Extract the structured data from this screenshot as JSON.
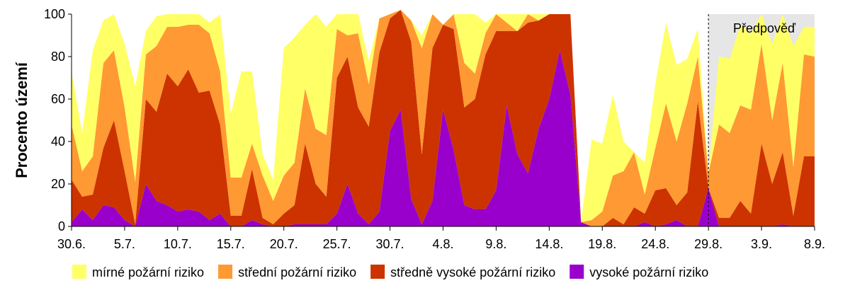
{
  "chart_data": {
    "type": "area",
    "stacked": true,
    "ylabel": "Procento území",
    "ylim": [
      0,
      100
    ],
    "yticks": [
      0,
      20,
      40,
      60,
      80,
      100
    ],
    "xlim": [
      0,
      70
    ],
    "x_tick_labels": [
      "30.6.",
      "5.7.",
      "10.7.",
      "15.7.",
      "20.7.",
      "25.7.",
      "30.7.",
      "4.8.",
      "9.8.",
      "14.8.",
      "19.8.",
      "24.8.",
      "29.8.",
      "3.9.",
      "8.9."
    ],
    "x_tick_positions": [
      0,
      5,
      10,
      15,
      20,
      25,
      30,
      35,
      40,
      45,
      50,
      55,
      60,
      65,
      70
    ],
    "grid": false,
    "legend_position": "bottom",
    "forecast_start": 60,
    "forecast_label": "Předpověď",
    "series": [
      {
        "name": "vysoké požární riziko",
        "color": "#9900cc",
        "values": [
          2,
          8,
          3,
          10,
          9,
          3,
          0,
          20,
          12,
          10,
          7,
          8,
          7,
          3,
          6,
          0,
          0,
          3,
          1,
          0,
          0,
          1,
          1,
          1,
          1,
          6,
          20,
          6,
          1,
          7,
          45,
          55,
          13,
          1,
          12,
          55,
          36,
          10,
          8,
          8,
          17,
          57,
          34,
          25,
          46,
          60,
          83,
          62,
          2,
          0,
          0,
          0,
          0,
          0,
          2,
          0,
          1,
          3,
          0,
          0,
          18,
          0,
          0,
          0,
          0,
          0,
          0,
          1,
          0,
          0,
          0
        ]
      },
      {
        "name": "středně vysoké požární riziko",
        "color": "#cc3300",
        "values": [
          20,
          6,
          12,
          27,
          41,
          23,
          1,
          40,
          42,
          62,
          59,
          66,
          56,
          61,
          42,
          5,
          5,
          24,
          3,
          1,
          6,
          9,
          38,
          19,
          13,
          64,
          60,
          50,
          46,
          75,
          53,
          47,
          74,
          33,
          72,
          40,
          57,
          46,
          52,
          73,
          75,
          35,
          58,
          71,
          51,
          40,
          17,
          38,
          0,
          0,
          0,
          4,
          1,
          9,
          4,
          17,
          17,
          7,
          16,
          59,
          0,
          4,
          4,
          12,
          6,
          39,
          20,
          34,
          5,
          33,
          33
        ]
      },
      {
        "name": "střední požární riziko",
        "color": "#ff9933",
        "values": [
          26,
          12,
          18,
          40,
          33,
          30,
          20,
          21,
          31,
          22,
          28,
          21,
          32,
          27,
          25,
          18,
          18,
          12,
          20,
          11,
          18,
          20,
          26,
          26,
          29,
          23,
          10,
          35,
          20,
          16,
          2,
          0,
          10,
          50,
          16,
          0,
          7,
          21,
          12,
          10,
          8,
          4,
          0,
          4,
          0,
          0,
          0,
          0,
          0,
          3,
          7,
          20,
          25,
          26,
          9,
          20,
          40,
          30,
          42,
          21,
          7,
          44,
          40,
          45,
          49,
          47,
          30,
          42,
          23,
          48,
          47
        ]
      },
      {
        "name": "mírné požární riziko",
        "color": "#ffff66",
        "values": [
          25,
          18,
          50,
          20,
          17,
          30,
          45,
          11,
          14,
          6,
          6,
          5,
          5,
          5,
          27,
          30,
          50,
          34,
          10,
          10,
          60,
          59,
          30,
          54,
          51,
          7,
          10,
          9,
          11,
          0,
          0,
          0,
          0,
          6,
          0,
          0,
          0,
          23,
          28,
          5,
          0,
          4,
          8,
          0,
          3,
          0,
          0,
          0,
          0,
          38,
          32,
          38,
          14,
          0,
          15,
          30,
          38,
          36,
          21,
          13,
          0,
          32,
          35,
          38,
          36,
          14,
          36,
          23,
          57,
          13,
          14
        ]
      }
    ]
  }
}
